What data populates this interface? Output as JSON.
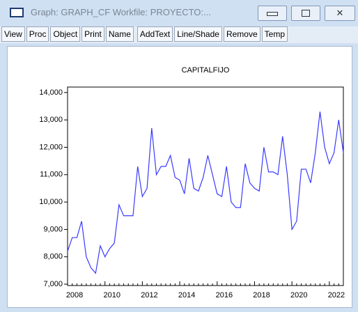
{
  "window": {
    "title": "Graph: GRAPH_CF   Workfile: PROYECTO:...",
    "toolbar": [
      "View",
      "Proc",
      "Object",
      "Print",
      "Name",
      "AddText",
      "Line/Shade",
      "Remove",
      "Temp"
    ]
  },
  "chart_data": {
    "type": "line",
    "title": "CAPITALFIJO",
    "categories": [
      "2008",
      null,
      null,
      null,
      null,
      null,
      null,
      null,
      "2010",
      null,
      null,
      null,
      null,
      null,
      null,
      null,
      "2012",
      null,
      null,
      null,
      null,
      null,
      null,
      null,
      "2014",
      null,
      null,
      null,
      null,
      null,
      null,
      null,
      "2016",
      null,
      null,
      null,
      null,
      null,
      null,
      null,
      "2018",
      null,
      null,
      null,
      null,
      null,
      null,
      null,
      "2020",
      null,
      null,
      null,
      null,
      null,
      null,
      null,
      "2022",
      null,
      null,
      null
    ],
    "series": [
      {
        "name": "CAPITALFIJO",
        "color": "#3a3aff",
        "values": [
          8200,
          8700,
          8700,
          9300,
          8000,
          7600,
          7400,
          8400,
          8000,
          8300,
          8500,
          9900,
          9500,
          9500,
          9500,
          11300,
          10200,
          10500,
          12700,
          11000,
          11300,
          11300,
          11700,
          10900,
          10800,
          10300,
          11600,
          10500,
          10400,
          10900,
          11700,
          11000,
          10300,
          10200,
          11300,
          10000,
          9800,
          9800,
          11400,
          10700,
          10500,
          10400,
          12000,
          11100,
          11100,
          11000,
          12400,
          11000,
          9000,
          9300,
          11200,
          11200,
          10700,
          11800,
          13300,
          12000,
          11400,
          11800,
          13000,
          11800
        ]
      }
    ],
    "ylim": [
      6950,
      14200
    ],
    "yticks": [
      {
        "value": 7000,
        "label": "7,000"
      },
      {
        "value": 8000,
        "label": "8,000"
      },
      {
        "value": 9000,
        "label": "9,000"
      },
      {
        "value": 10000,
        "label": "10,000"
      },
      {
        "value": 11000,
        "label": "11,000"
      },
      {
        "value": 12000,
        "label": "12,000"
      },
      {
        "value": 13000,
        "label": "13,000"
      },
      {
        "value": 14000,
        "label": "14,000"
      }
    ],
    "grid": false
  }
}
